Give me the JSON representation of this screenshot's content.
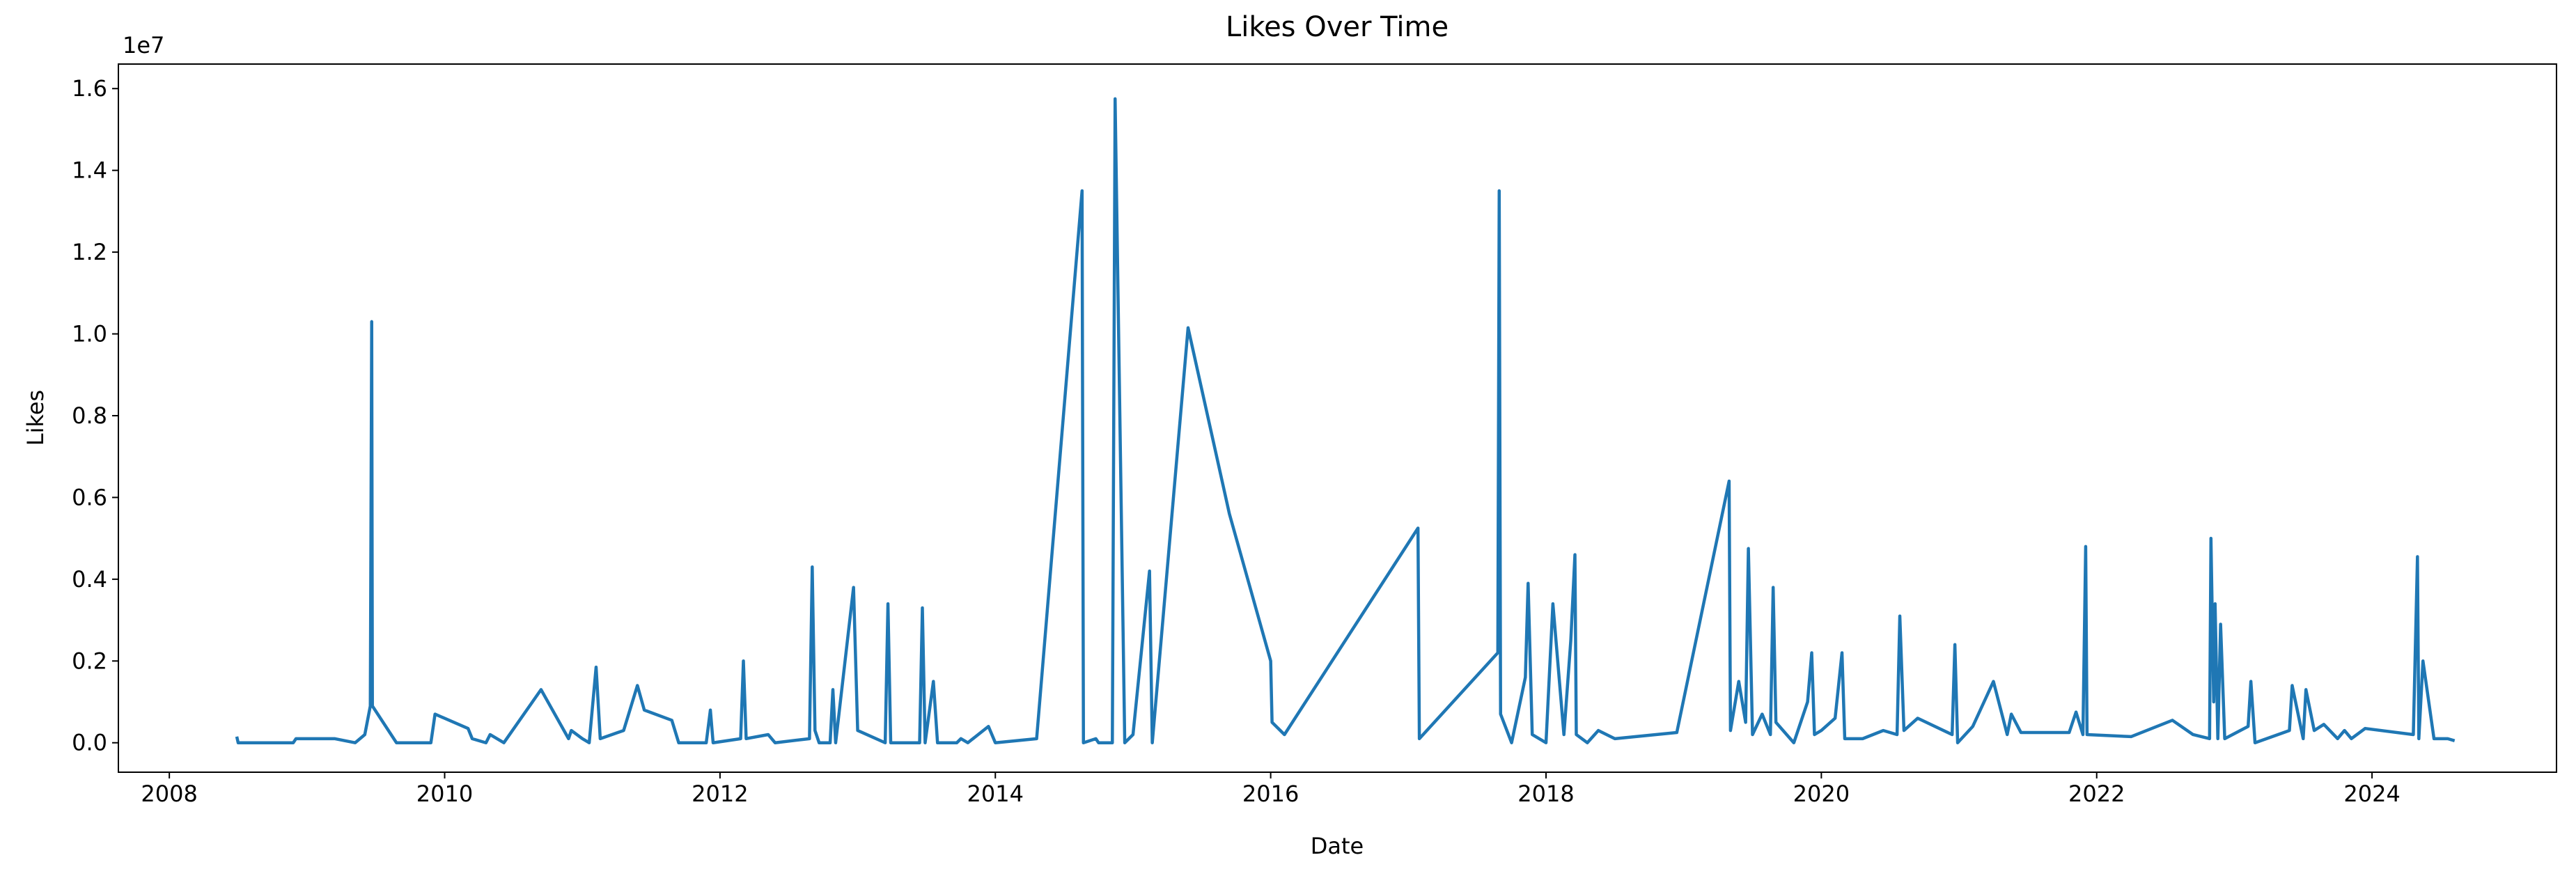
{
  "chart_data": {
    "type": "line",
    "title": "Likes Over Time",
    "x_label": "Date",
    "y_label": "Likes",
    "y_offset_label": "1e7",
    "color": "#1f77b4",
    "xlim": [
      2007.63,
      2025.34
    ],
    "xticks": [
      2008,
      2010,
      2012,
      2014,
      2016,
      2018,
      2020,
      2022,
      2024
    ],
    "ylim": [
      -0.072,
      1.66
    ],
    "yticks": [
      {
        "value": 0,
        "label": "0.0"
      },
      {
        "value": 0.2,
        "label": "0.2"
      },
      {
        "value": 0.4,
        "label": "0.4"
      },
      {
        "value": 0.6,
        "label": "0.6"
      },
      {
        "value": 0.8,
        "label": "0.8"
      },
      {
        "value": 1,
        "label": "1.0"
      },
      {
        "value": 1.2,
        "label": "1.2"
      },
      {
        "value": 1.4,
        "label": "1.4"
      },
      {
        "value": 1.6,
        "label": "1.6"
      }
    ],
    "x": [
      2008.49,
      2008.5,
      2008.9,
      2008.92,
      2009.2,
      2009.35,
      2009.42,
      2009.46,
      2009.47,
      2009.475,
      2009.65,
      2009.9,
      2009.93,
      2010.17,
      2010.2,
      2010.3,
      2010.33,
      2010.43,
      2010.7,
      2010.9,
      2010.92,
      2011.0,
      2011.05,
      2011.1,
      2011.13,
      2011.3,
      2011.4,
      2011.45,
      2011.65,
      2011.7,
      2011.9,
      2011.93,
      2011.95,
      2012.15,
      2012.17,
      2012.19,
      2012.35,
      2012.4,
      2012.65,
      2012.67,
      2012.69,
      2012.72,
      2012.8,
      2012.82,
      2012.84,
      2012.97,
      2013.0,
      2013.2,
      2013.22,
      2013.24,
      2013.45,
      2013.47,
      2013.49,
      2013.55,
      2013.58,
      2013.72,
      2013.75,
      2013.8,
      2013.95,
      2014.0,
      2014.3,
      2014.63,
      2014.64,
      2014.73,
      2014.75,
      2014.85,
      2014.87,
      2014.94,
      2015.0,
      2015.12,
      2015.14,
      2015.4,
      2015.7,
      2016.0,
      2016.01,
      2016.1,
      2017.07,
      2017.08,
      2017.65,
      2017.66,
      2017.67,
      2017.75,
      2017.85,
      2017.87,
      2017.9,
      2018.0,
      2018.05,
      2018.13,
      2018.18,
      2018.21,
      2018.22,
      2018.3,
      2018.38,
      2018.5,
      2018.95,
      2019.33,
      2019.34,
      2019.4,
      2019.45,
      2019.47,
      2019.5,
      2019.57,
      2019.63,
      2019.65,
      2019.67,
      2019.8,
      2019.9,
      2019.93,
      2019.95,
      2020.0,
      2020.1,
      2020.15,
      2020.17,
      2020.3,
      2020.45,
      2020.55,
      2020.57,
      2020.6,
      2020.7,
      2020.95,
      2020.97,
      2020.99,
      2021.1,
      2021.25,
      2021.35,
      2021.38,
      2021.45,
      2021.8,
      2021.85,
      2021.9,
      2021.92,
      2021.93,
      2022.25,
      2022.55,
      2022.7,
      2022.82,
      2022.83,
      2022.85,
      2022.86,
      2022.88,
      2022.9,
      2022.93,
      2023.1,
      2023.12,
      2023.15,
      2023.4,
      2023.42,
      2023.5,
      2023.52,
      2023.58,
      2023.65,
      2023.75,
      2023.8,
      2023.85,
      2023.95,
      2024.3,
      2024.33,
      2024.34,
      2024.37,
      2024.45,
      2024.55,
      2024.6
    ],
    "values": [
      0.015,
      0.0,
      0.0,
      0.01,
      0.01,
      0.0,
      0.02,
      0.09,
      1.03,
      0.09,
      0.0,
      0.0,
      0.07,
      0.035,
      0.01,
      0.0,
      0.02,
      0.0,
      0.13,
      0.01,
      0.03,
      0.01,
      0.0,
      0.185,
      0.01,
      0.03,
      0.14,
      0.08,
      0.055,
      0.0,
      0.0,
      0.08,
      0.0,
      0.01,
      0.2,
      0.01,
      0.02,
      0.0,
      0.01,
      0.43,
      0.03,
      0.0,
      0.0,
      0.13,
      0.0,
      0.38,
      0.03,
      0.0,
      0.34,
      0.0,
      0.0,
      0.33,
      0.0,
      0.15,
      0.0,
      0.0,
      0.01,
      0.0,
      0.04,
      0.0,
      0.01,
      1.35,
      0.0,
      0.01,
      0.0,
      0.0,
      1.575,
      0.0,
      0.02,
      0.42,
      0.0,
      1.015,
      0.56,
      0.2,
      0.05,
      0.02,
      0.525,
      0.01,
      0.22,
      1.35,
      0.07,
      0.0,
      0.16,
      0.39,
      0.02,
      0.0,
      0.34,
      0.02,
      0.25,
      0.46,
      0.02,
      0.0,
      0.03,
      0.01,
      0.025,
      0.64,
      0.03,
      0.15,
      0.05,
      0.475,
      0.02,
      0.07,
      0.02,
      0.38,
      0.05,
      0.0,
      0.1,
      0.22,
      0.02,
      0.03,
      0.06,
      0.22,
      0.01,
      0.01,
      0.03,
      0.02,
      0.31,
      0.03,
      0.06,
      0.02,
      0.24,
      0.0,
      0.04,
      0.15,
      0.02,
      0.07,
      0.025,
      0.025,
      0.075,
      0.02,
      0.48,
      0.02,
      0.015,
      0.055,
      0.02,
      0.01,
      0.5,
      0.1,
      0.34,
      0.01,
      0.29,
      0.01,
      0.04,
      0.15,
      0.0,
      0.03,
      0.14,
      0.01,
      0.13,
      0.03,
      0.045,
      0.01,
      0.03,
      0.01,
      0.035,
      0.02,
      0.455,
      0.01,
      0.2,
      0.01,
      0.01,
      0.005
    ]
  }
}
